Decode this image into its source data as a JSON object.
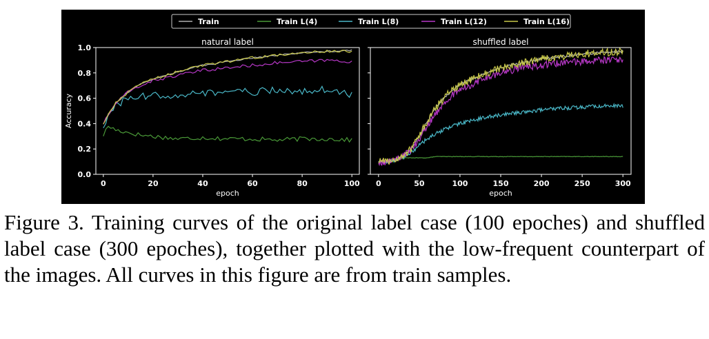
{
  "caption": "Figure 3. Training curves of the original label case (100 epoches) and shuffled label case (300 epoches), together plotted with the low-frequent counterpart of the images. All curves in this figure are from train samples.",
  "legend": [
    {
      "name": "Train",
      "color": "#b0b0b0"
    },
    {
      "name": "Train L(4)",
      "color": "#4a9a38"
    },
    {
      "name": "Train L(8)",
      "color": "#4ab8c8"
    },
    {
      "name": "Train L(12)",
      "color": "#b838c8"
    },
    {
      "name": "Train L(16)",
      "color": "#c8c848"
    }
  ],
  "chart_data": [
    {
      "type": "line",
      "title": "natural label",
      "xlabel": "epoch",
      "ylabel": "Accuracy",
      "xlim": [
        -3,
        103
      ],
      "ylim": [
        0.0,
        1.0
      ],
      "xticks": [
        0,
        20,
        40,
        60,
        80,
        100
      ],
      "yticks": [
        0.0,
        0.2,
        0.4,
        0.6,
        0.8,
        1.0
      ],
      "x": [
        0,
        2,
        5,
        10,
        15,
        20,
        30,
        40,
        50,
        60,
        70,
        80,
        90,
        100
      ],
      "series": [
        {
          "name": "Train",
          "values": [
            0.4,
            0.47,
            0.56,
            0.65,
            0.71,
            0.75,
            0.81,
            0.86,
            0.89,
            0.92,
            0.94,
            0.96,
            0.97,
            0.98
          ]
        },
        {
          "name": "Train L(4)",
          "values": [
            0.31,
            0.38,
            0.35,
            0.33,
            0.31,
            0.3,
            0.28,
            0.29,
            0.28,
            0.28,
            0.27,
            0.28,
            0.28,
            0.27
          ]
        },
        {
          "name": "Train L(8)",
          "values": [
            0.38,
            0.46,
            0.54,
            0.6,
            0.61,
            0.62,
            0.63,
            0.64,
            0.65,
            0.65,
            0.66,
            0.66,
            0.67,
            0.63
          ]
        },
        {
          "name": "Train L(12)",
          "values": [
            0.4,
            0.47,
            0.56,
            0.65,
            0.7,
            0.74,
            0.78,
            0.82,
            0.84,
            0.86,
            0.88,
            0.89,
            0.9,
            0.89
          ]
        },
        {
          "name": "Train L(16)",
          "values": [
            0.4,
            0.47,
            0.56,
            0.65,
            0.71,
            0.75,
            0.81,
            0.86,
            0.89,
            0.92,
            0.94,
            0.96,
            0.97,
            0.97
          ]
        }
      ]
    },
    {
      "type": "line",
      "title": "shuffled label",
      "xlabel": "epoch",
      "ylabel": "",
      "xlim": [
        -10,
        310
      ],
      "ylim": [
        0.0,
        1.0
      ],
      "xticks": [
        0,
        50,
        100,
        150,
        200,
        250,
        300
      ],
      "yticks": [
        0.0,
        0.2,
        0.4,
        0.6,
        0.8,
        1.0
      ],
      "x": [
        0,
        10,
        20,
        30,
        40,
        50,
        60,
        70,
        80,
        90,
        100,
        125,
        150,
        175,
        200,
        225,
        250,
        275,
        300
      ],
      "series": [
        {
          "name": "Train",
          "values": [
            0.1,
            0.1,
            0.11,
            0.14,
            0.2,
            0.3,
            0.42,
            0.52,
            0.6,
            0.66,
            0.71,
            0.78,
            0.84,
            0.88,
            0.91,
            0.93,
            0.95,
            0.96,
            0.97
          ]
        },
        {
          "name": "Train L(4)",
          "values": [
            0.1,
            0.11,
            0.12,
            0.13,
            0.13,
            0.13,
            0.13,
            0.14,
            0.14,
            0.14,
            0.14,
            0.14,
            0.14,
            0.14,
            0.14,
            0.14,
            0.14,
            0.14,
            0.14
          ]
        },
        {
          "name": "Train L(8)",
          "values": [
            0.1,
            0.1,
            0.11,
            0.13,
            0.17,
            0.23,
            0.28,
            0.32,
            0.35,
            0.38,
            0.4,
            0.44,
            0.47,
            0.49,
            0.51,
            0.52,
            0.53,
            0.54,
            0.54
          ]
        },
        {
          "name": "Train L(12)",
          "values": [
            0.1,
            0.1,
            0.11,
            0.14,
            0.19,
            0.28,
            0.39,
            0.48,
            0.56,
            0.62,
            0.67,
            0.74,
            0.8,
            0.84,
            0.86,
            0.88,
            0.89,
            0.9,
            0.91
          ]
        },
        {
          "name": "Train L(16)",
          "values": [
            0.1,
            0.1,
            0.11,
            0.14,
            0.2,
            0.3,
            0.42,
            0.52,
            0.6,
            0.66,
            0.71,
            0.78,
            0.84,
            0.88,
            0.91,
            0.93,
            0.95,
            0.96,
            0.97
          ]
        }
      ]
    }
  ]
}
